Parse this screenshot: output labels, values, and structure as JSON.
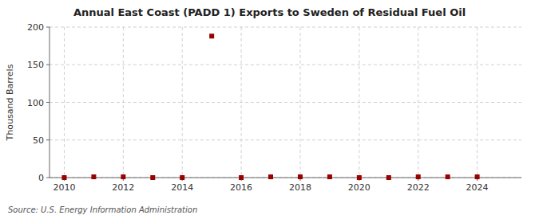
{
  "chart_data": {
    "type": "scatter",
    "title": "Annual East Coast (PADD 1) Exports to Sweden of Residual Fuel Oil",
    "ylabel": "Thousand Barrels",
    "source": "Source: U.S. Energy Information Administration",
    "x": [
      2010,
      2011,
      2012,
      2013,
      2014,
      2015,
      2016,
      2017,
      2018,
      2019,
      2020,
      2021,
      2022,
      2023,
      2024
    ],
    "values": [
      0,
      1,
      1,
      0,
      0,
      188,
      0,
      1,
      1,
      1,
      0,
      0,
      1,
      1,
      1
    ],
    "color": "#990000",
    "marker": "square",
    "xlim": [
      2009.5,
      2025.5
    ],
    "ylim": [
      0,
      200
    ],
    "xticks": [
      2010,
      2012,
      2014,
      2016,
      2018,
      2020,
      2022,
      2024
    ],
    "yticks": [
      0,
      50,
      100,
      150,
      200
    ],
    "grid": true
  }
}
